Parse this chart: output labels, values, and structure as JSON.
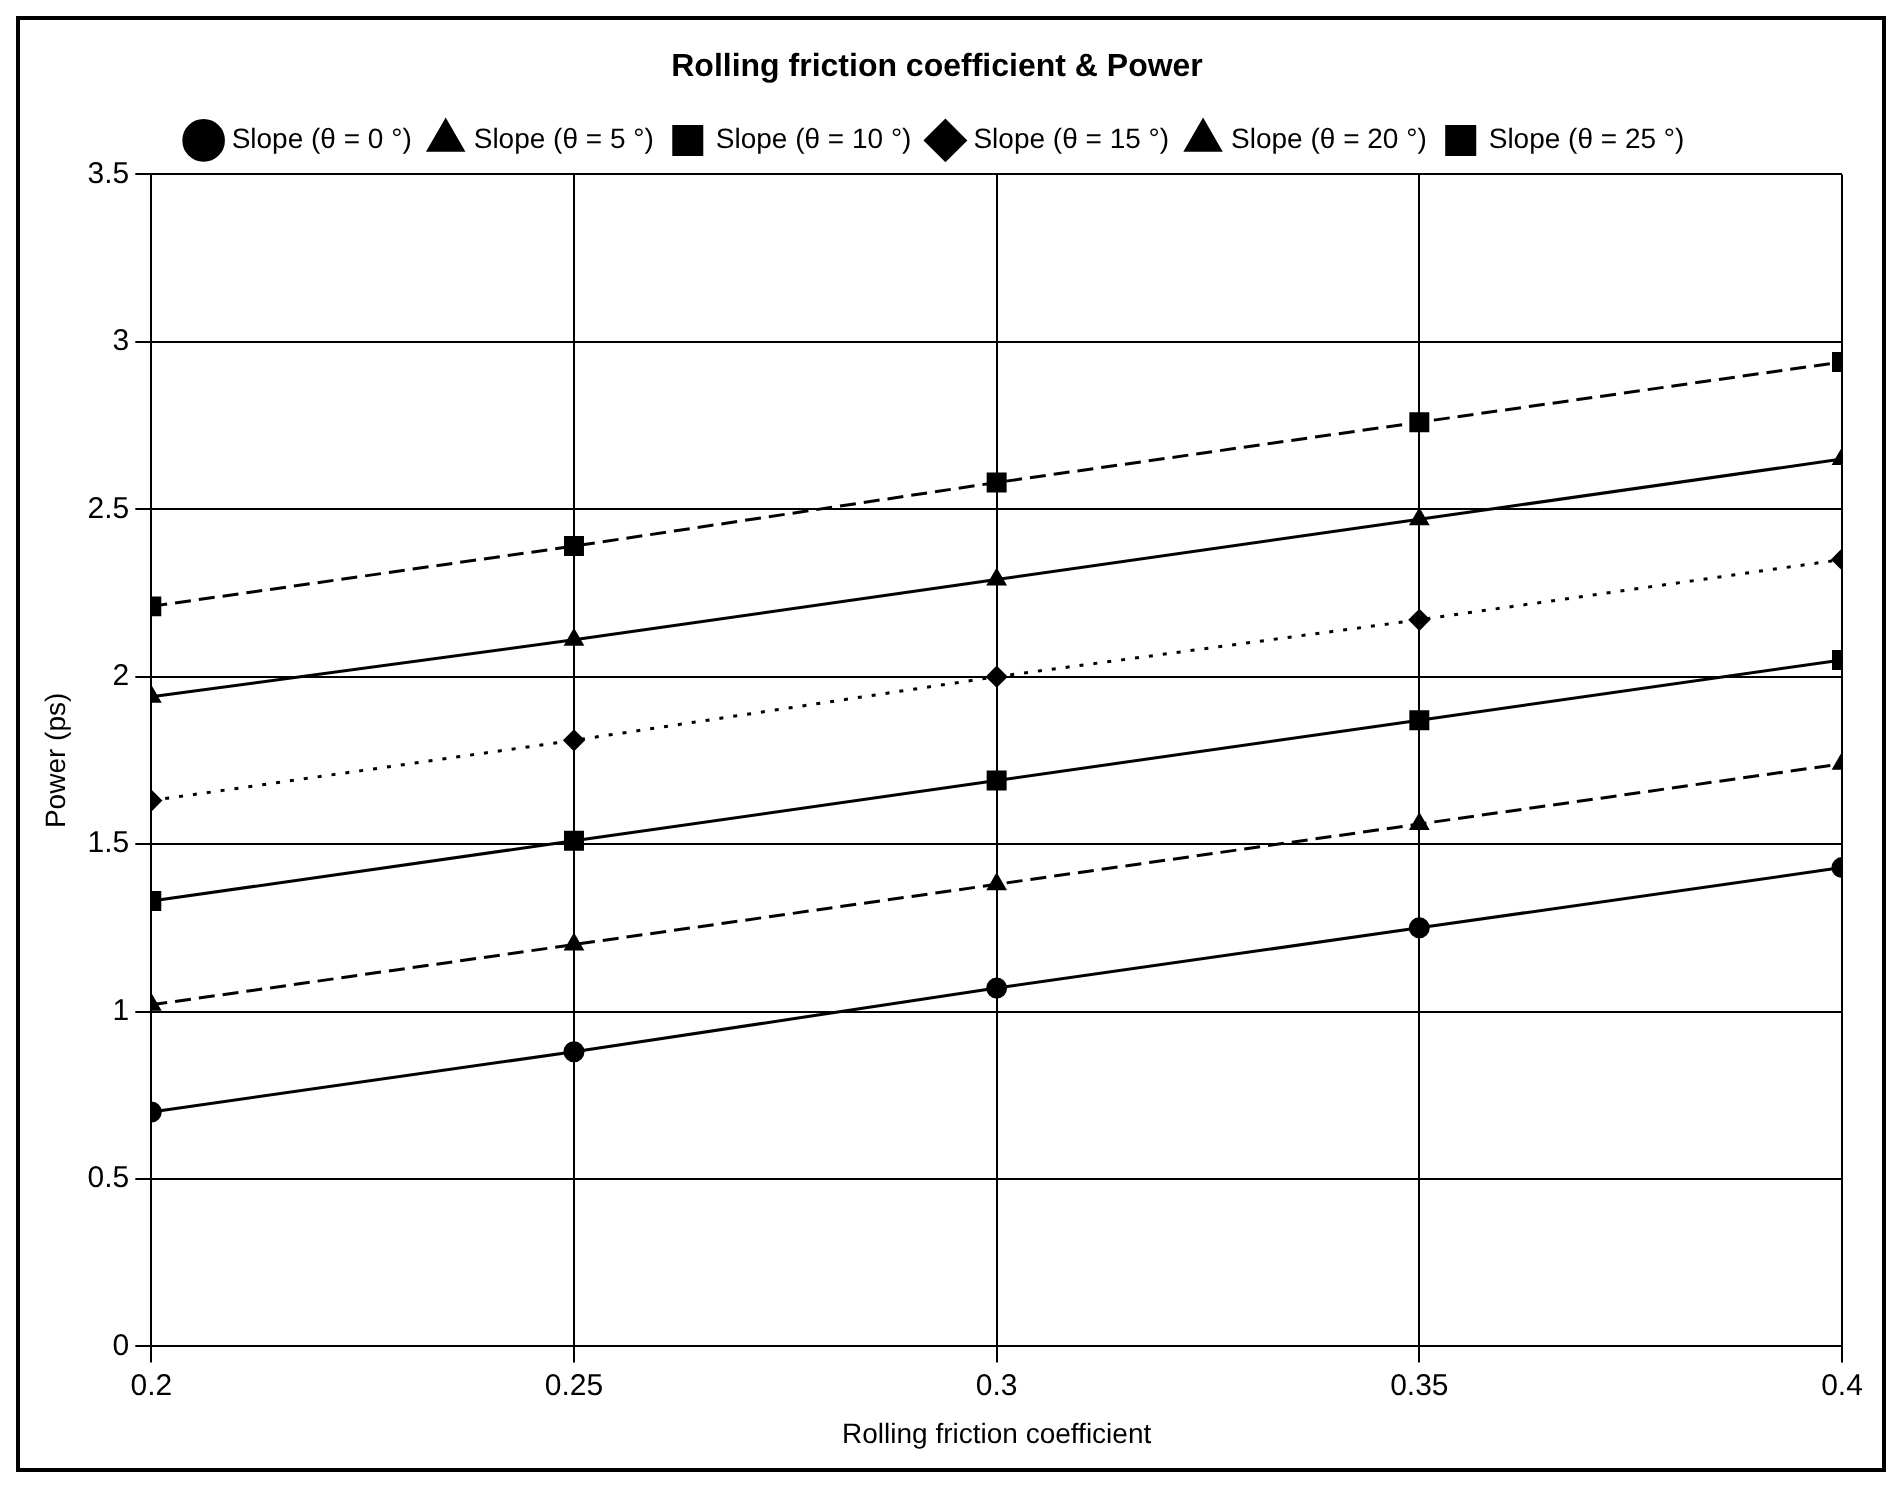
{
  "chart_data": {
    "type": "line",
    "title": "Rolling friction coefficient & Power",
    "xlabel": "Rolling friction coefficient",
    "ylabel": "Power (ps)",
    "x": [
      0.2,
      0.25,
      0.3,
      0.35,
      0.4
    ],
    "xlim": [
      0.2,
      0.4
    ],
    "xticks": [
      0.2,
      0.25,
      0.3,
      0.35,
      0.4
    ],
    "ylim": [
      0,
      3.5
    ],
    "yticks": [
      0,
      0.5,
      1,
      1.5,
      2,
      2.5,
      3,
      3.5
    ],
    "grid": true,
    "legend": "top",
    "series": [
      {
        "name": "Slope (θ = 0 °)",
        "color": "#000000",
        "marker": "circle",
        "line_style": "solid",
        "values": [
          0.7,
          0.88,
          1.07,
          1.25,
          1.43
        ]
      },
      {
        "name": "Slope (θ = 5 °)",
        "color": "#000000",
        "marker": "triangle",
        "line_style": "dashed",
        "values": [
          1.02,
          1.2,
          1.38,
          1.56,
          1.74
        ]
      },
      {
        "name": "Slope (θ = 10 °)",
        "color": "#000000",
        "marker": "square",
        "line_style": "solid",
        "values": [
          1.33,
          1.51,
          1.69,
          1.87,
          2.05
        ]
      },
      {
        "name": "Slope (θ = 15 °)",
        "color": "#000000",
        "marker": "diamond",
        "line_style": "dotted",
        "values": [
          1.63,
          1.81,
          2.0,
          2.17,
          2.35
        ]
      },
      {
        "name": "Slope (θ = 20 °)",
        "color": "#000000",
        "marker": "triangle",
        "line_style": "solid",
        "values": [
          1.94,
          2.11,
          2.29,
          2.47,
          2.65
        ]
      },
      {
        "name": "Slope (θ = 25 °)",
        "color": "#000000",
        "marker": "square",
        "line_style": "dashed",
        "values": [
          2.21,
          2.39,
          2.58,
          2.76,
          2.94
        ]
      }
    ]
  }
}
